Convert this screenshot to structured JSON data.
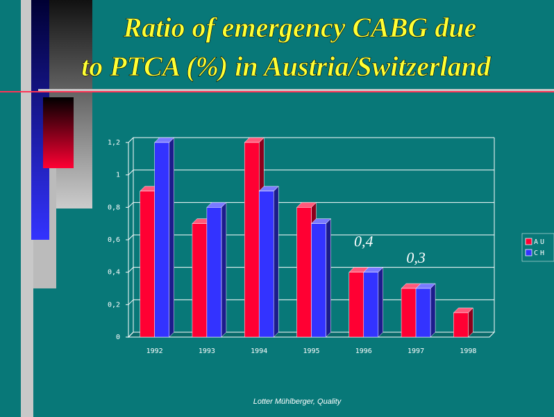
{
  "chart_data": {
    "type": "bar3d",
    "title": [
      "Ratio of emergency CABG due",
      "to PTCA (%) in Austria/Switzerland"
    ],
    "categories": [
      "1992",
      "1993",
      "1994",
      "1995",
      "1996",
      "1997",
      "1998"
    ],
    "series": [
      {
        "name": "AU",
        "color": "#ff0033",
        "values": [
          0.9,
          0.7,
          1.2,
          0.8,
          0.4,
          0.3,
          0.15
        ]
      },
      {
        "name": "CH",
        "color": "#3333ff",
        "values": [
          1.2,
          0.8,
          0.9,
          0.7,
          0.4,
          0.3,
          null
        ]
      }
    ],
    "ylim": [
      0,
      1.2
    ],
    "yticks": [
      0,
      {
        "value": 0.2,
        "label": "0,2"
      },
      {
        "value": 0.4,
        "label": "0,4"
      },
      {
        "value": 0.6,
        "label": "0,6"
      },
      {
        "value": 0.8,
        "label": "0,8"
      },
      1,
      {
        "value": 1.2,
        "label": "1,2"
      }
    ],
    "grid": true,
    "legend": "right",
    "annotations": [
      {
        "text": "0,4",
        "x": "1996"
      },
      {
        "text": "0,3",
        "x": "1997"
      }
    ],
    "footer": "Lotter Mühlberger, Quality"
  }
}
